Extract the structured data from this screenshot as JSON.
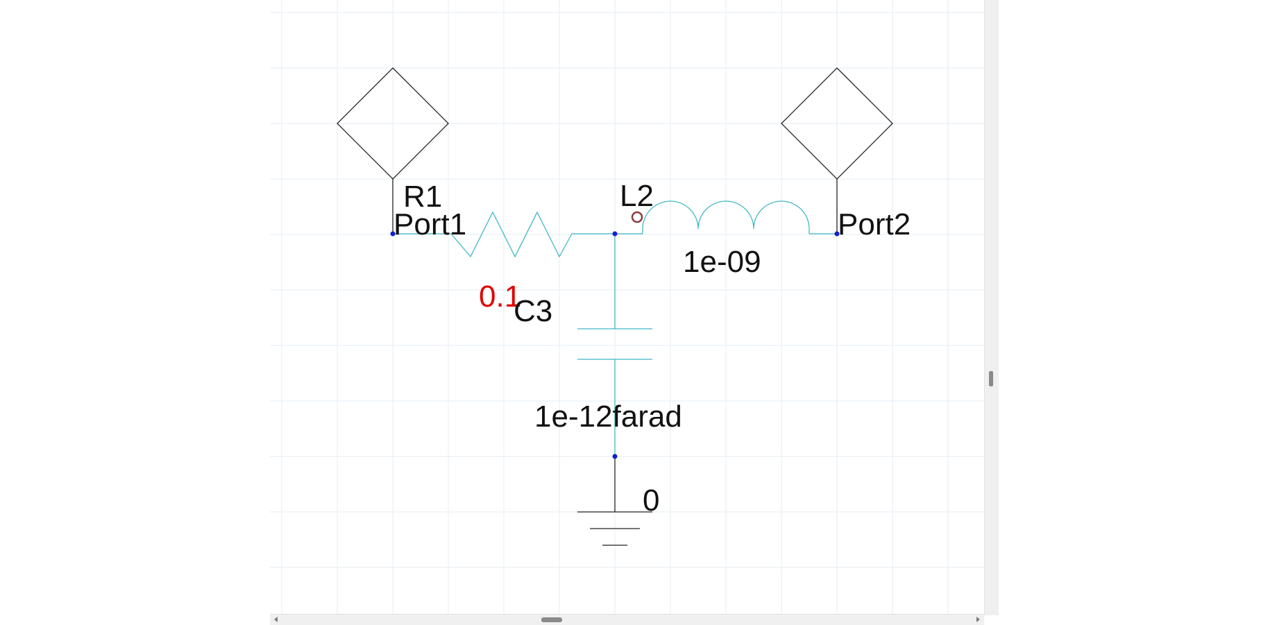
{
  "schematic": {
    "port1_label": "Port1",
    "port2_label": "Port2",
    "resistor_ref": "R1",
    "resistor_value": "0.1",
    "inductor_ref": "L2",
    "inductor_value": "1e-09",
    "capacitor_ref": "C3",
    "capacitor_value": "1e-12farad",
    "ground_label": "0"
  },
  "colors": {
    "component": "#3fb8c4",
    "wire": "#222222",
    "node": "#1020d0",
    "selected_value": "#e00000",
    "grid": "#e6eef3"
  },
  "icons": {
    "port1": "diamond-port-icon",
    "port2": "diamond-port-icon",
    "resistor": "resistor-zigzag-icon",
    "inductor": "inductor-coil-icon",
    "capacitor": "capacitor-plates-icon",
    "ground": "ground-icon",
    "inductor_dot": "polarity-dot-icon"
  }
}
